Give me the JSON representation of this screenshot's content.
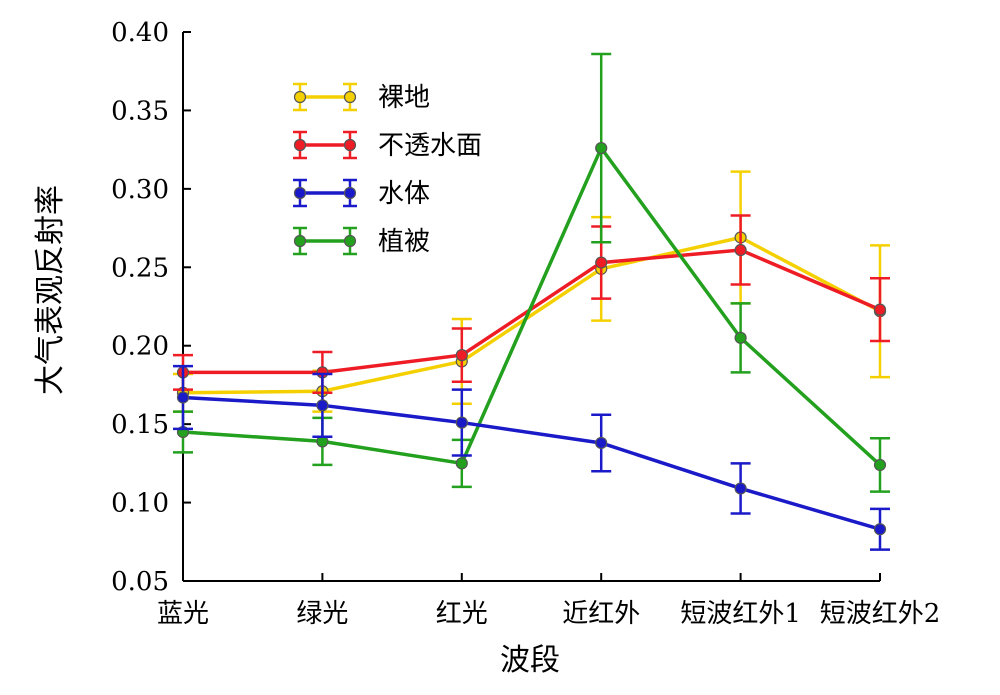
{
  "chart_data": {
    "type": "line",
    "title": "",
    "xlabel": "波段",
    "ylabel": "大气表观反射率",
    "categories": [
      "蓝光",
      "绿光",
      "红光",
      "近红外",
      "短波红外1",
      "短波红外2"
    ],
    "ylim": [
      0.05,
      0.4
    ],
    "yticks": [
      "0.05",
      "0.10",
      "0.15",
      "0.20",
      "0.25",
      "0.30",
      "0.35",
      "0.40"
    ],
    "grid": false,
    "legend_position": "top-left",
    "series": [
      {
        "name": "裸地",
        "color": "#f5d000",
        "values": [
          0.17,
          0.171,
          0.19,
          0.249,
          0.269,
          0.222
        ],
        "errors": [
          0.012,
          0.013,
          0.027,
          0.033,
          0.042,
          0.042
        ]
      },
      {
        "name": "不透水面",
        "color": "#ee1c25",
        "values": [
          0.183,
          0.183,
          0.194,
          0.253,
          0.261,
          0.223
        ],
        "errors": [
          0.011,
          0.013,
          0.017,
          0.023,
          0.022,
          0.02
        ]
      },
      {
        "name": "水体",
        "color": "#1a1ac8",
        "values": [
          0.167,
          0.162,
          0.151,
          0.138,
          0.109,
          0.083
        ],
        "errors": [
          0.02,
          0.02,
          0.021,
          0.018,
          0.016,
          0.013
        ]
      },
      {
        "name": "植被",
        "color": "#22a01e",
        "values": [
          0.145,
          0.139,
          0.125,
          0.326,
          0.205,
          0.124
        ],
        "errors": [
          0.013,
          0.015,
          0.015,
          0.06,
          0.022,
          0.017
        ]
      }
    ]
  }
}
